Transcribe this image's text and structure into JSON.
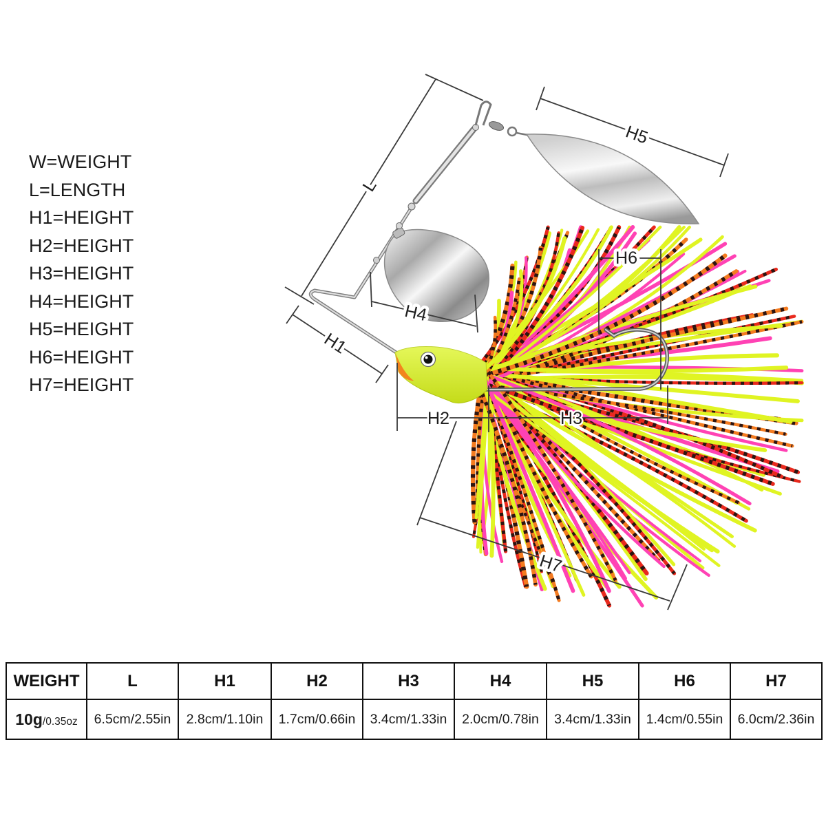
{
  "legend": {
    "items": [
      "W=WEIGHT",
      "L=LENGTH",
      "H1=HEIGHT",
      "H2=HEIGHT",
      "H3=HEIGHT",
      "H4=HEIGHT",
      "H5=HEIGHT",
      "H6=HEIGHT",
      "H7=HEIGHT"
    ]
  },
  "diagram": {
    "dimension_labels": {
      "L": "L",
      "H1": "H1",
      "H2": "H2",
      "H3": "H3",
      "H4": "H4",
      "H5": "H5",
      "H6": "H6",
      "H7": "H7"
    },
    "colors": {
      "head": "#dcf522",
      "mouth": "#f3841d",
      "skirt_chartreuse": "#e0f423",
      "skirt_pink": "#ff42b4",
      "skirt_red": "#e9291d",
      "skirt_orange": "#f47b20",
      "skirt_flake": "#2e1410"
    }
  },
  "spec_table": {
    "headers": [
      "WEIGHT",
      "L",
      "H1",
      "H2",
      "H3",
      "H4",
      "H5",
      "H6",
      "H7"
    ],
    "values": {
      "weight_grams": "10g",
      "weight_ounces": "/0.35oz",
      "dims": [
        "6.5cm/2.55in",
        "2.8cm/1.10in",
        "1.7cm/0.66in",
        "3.4cm/1.33in",
        "2.0cm/0.78in",
        "3.4cm/1.33in",
        "1.4cm/0.55in",
        "6.0cm/2.36in"
      ]
    }
  }
}
